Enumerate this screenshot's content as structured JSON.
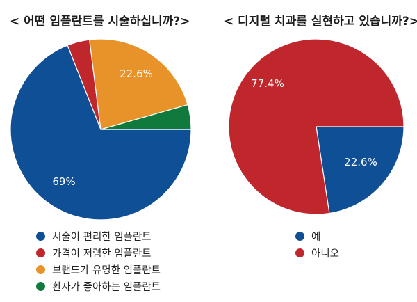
{
  "chart_data": [
    {
      "type": "pie",
      "title": "< 어떤 임플란트를 시술하십니까?>",
      "slices": [
        {
          "label": "시술이 편리한 임플란트",
          "value": 69,
          "data_label": "69%",
          "color": "#0e4f96"
        },
        {
          "label": "가격이 저렴한 임플란트",
          "value": 4,
          "data_label": "",
          "color": "#c0272d"
        },
        {
          "label": "브랜드가 유명한 임플란트",
          "value": 22.6,
          "data_label": "22.6%",
          "color": "#e8922a"
        },
        {
          "label": "환자가 좋아하는 임플란트",
          "value": 4.4,
          "data_label": "",
          "color": "#0f7a3b"
        }
      ]
    },
    {
      "type": "pie",
      "title": "< 디지털 치과를 실현하고 있습니까?>",
      "slices": [
        {
          "label": "예",
          "value": 22.6,
          "data_label": "22.6%",
          "color": "#0e4f96"
        },
        {
          "label": "아니오",
          "value": 77.4,
          "data_label": "77.4%",
          "color": "#c0272d"
        }
      ]
    }
  ]
}
